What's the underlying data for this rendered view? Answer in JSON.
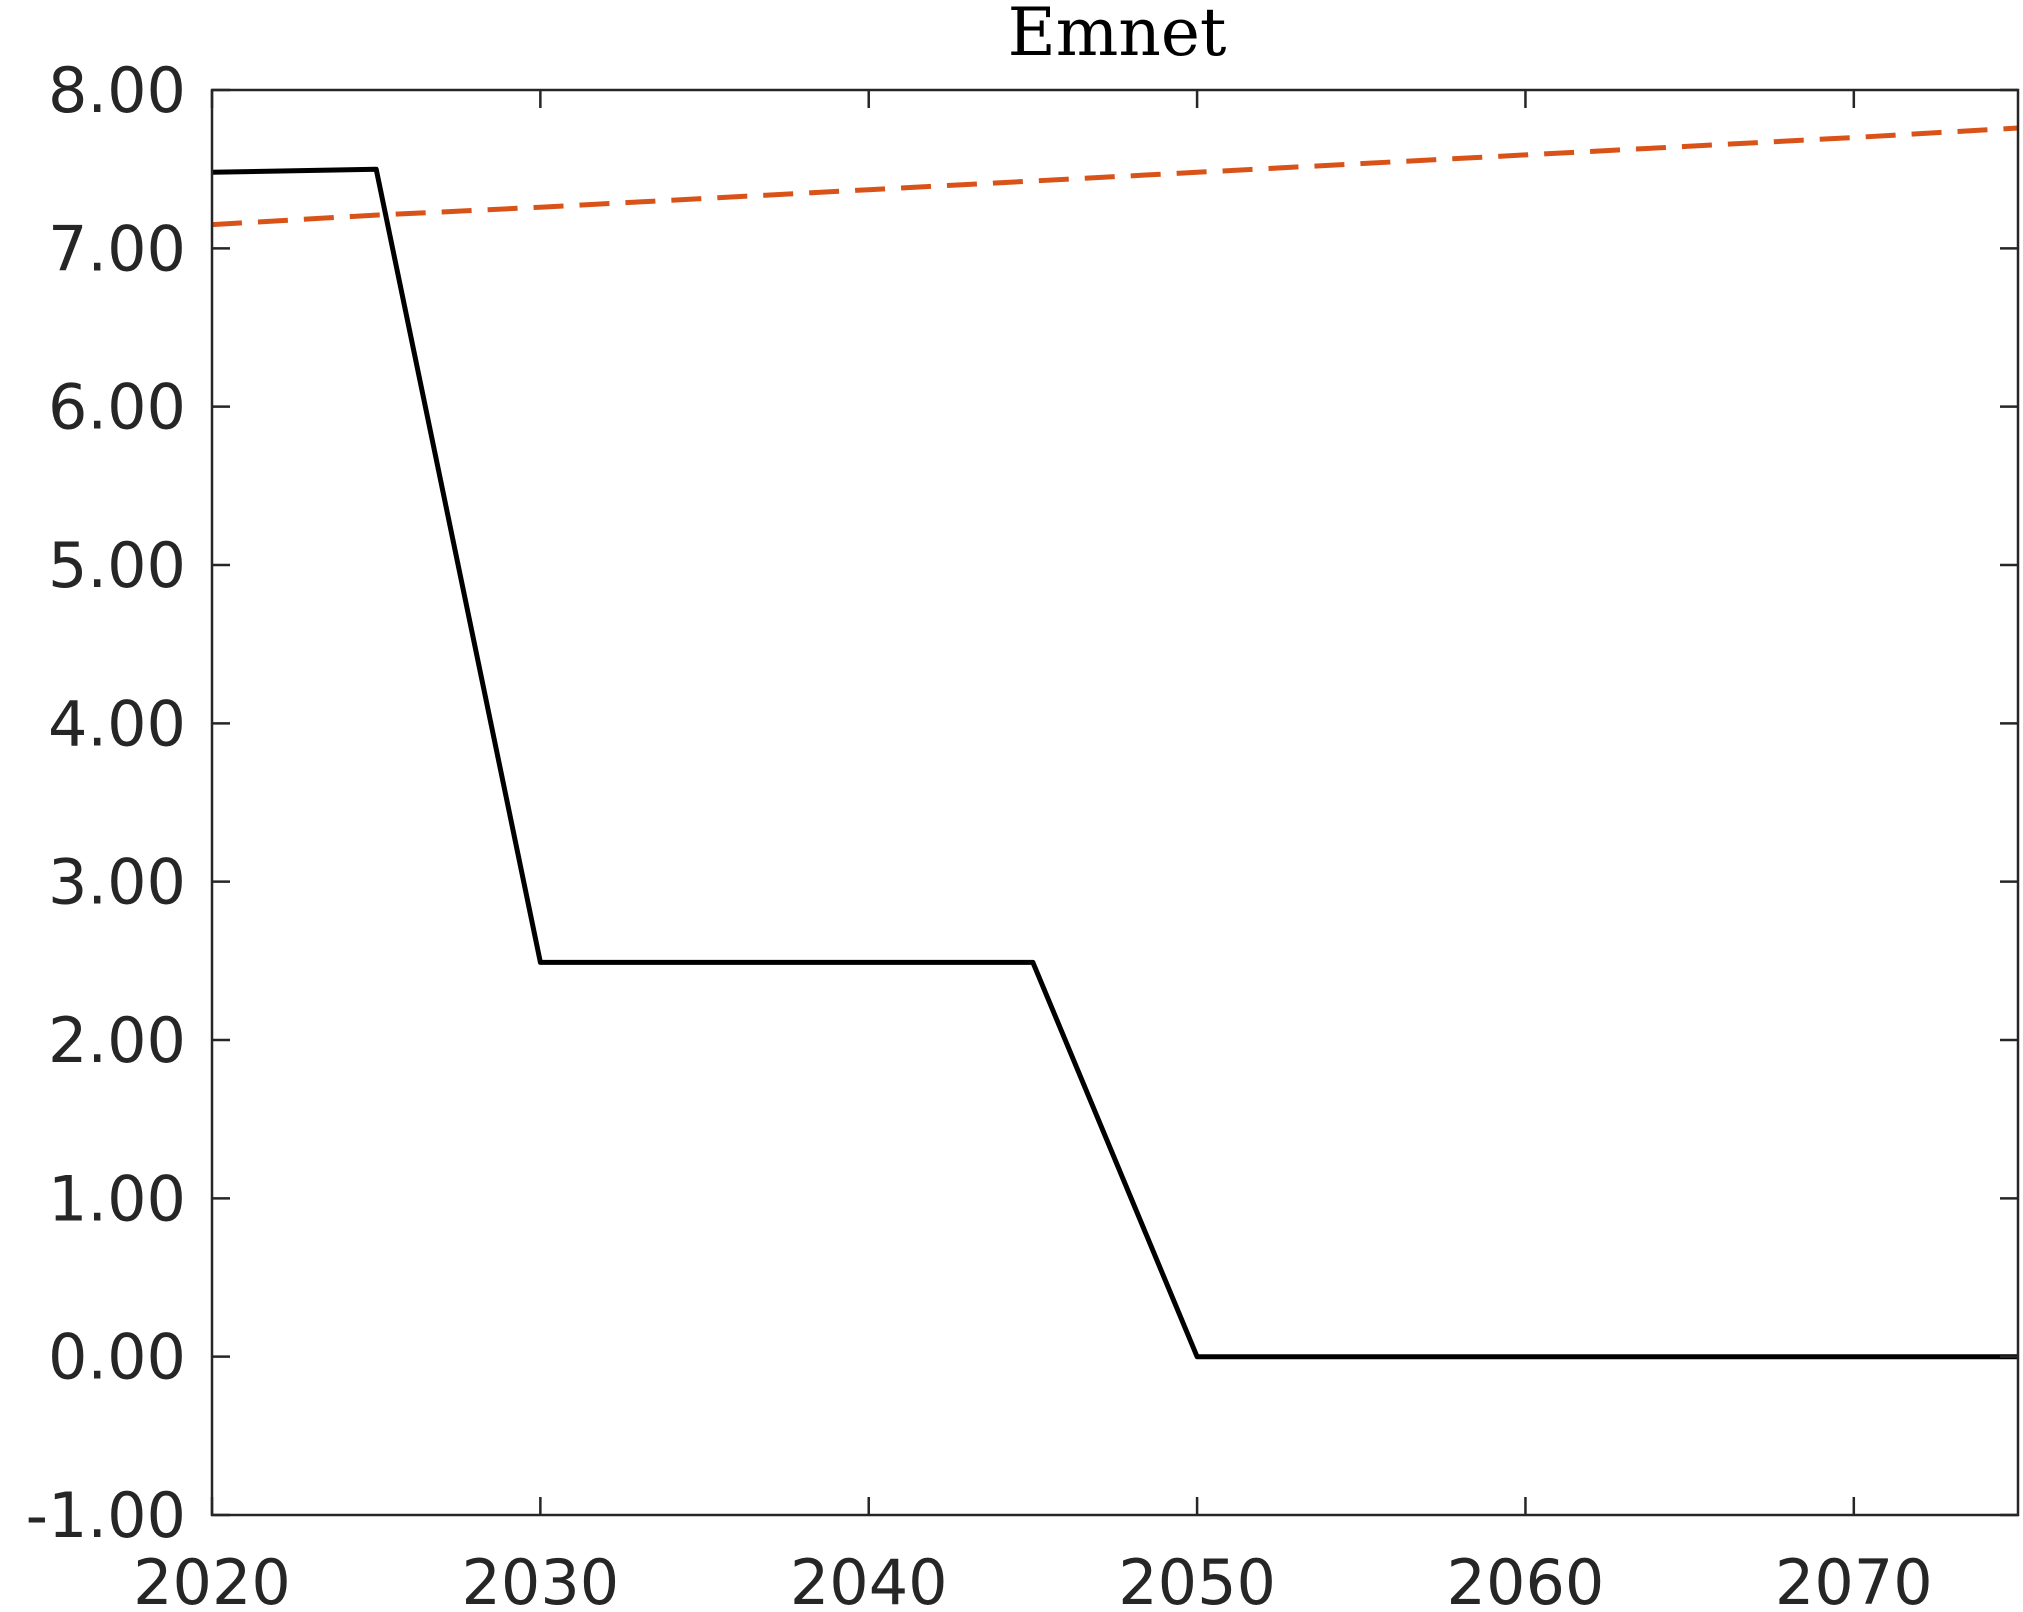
{
  "chart_data": {
    "type": "line",
    "title": "Emnet",
    "xlabel": "",
    "ylabel": "",
    "xlim": [
      2020,
      2075
    ],
    "ylim": [
      -1,
      8
    ],
    "x_ticks": [
      2020,
      2030,
      2040,
      2050,
      2060,
      2070
    ],
    "x_tick_labels": [
      "2020",
      "2030",
      "2040",
      "2050",
      "2060",
      "2070"
    ],
    "y_ticks": [
      8,
      7,
      6,
      5,
      4,
      3,
      2,
      1,
      0,
      -1
    ],
    "y_tick_labels": [
      "8.00",
      "7.00",
      "6.00",
      "5.00",
      "4.00",
      "3.00",
      "2.00",
      "1.00",
      "0.00",
      "-1.00"
    ],
    "grid": false,
    "legend": "none",
    "series": [
      {
        "color": "#000000",
        "style": "solid",
        "x": [
          2020,
          2025,
          2030,
          2045,
          2050,
          2075
        ],
        "y": [
          7.48,
          7.5,
          2.49,
          2.49,
          0.0,
          0.0
        ]
      },
      {
        "color": "#d95319",
        "style": "dashed",
        "x": [
          2020,
          2025,
          2030,
          2040,
          2050,
          2060,
          2070,
          2075
        ],
        "y": [
          7.15,
          7.21,
          7.26,
          7.37,
          7.48,
          7.59,
          7.7,
          7.76
        ]
      }
    ]
  }
}
